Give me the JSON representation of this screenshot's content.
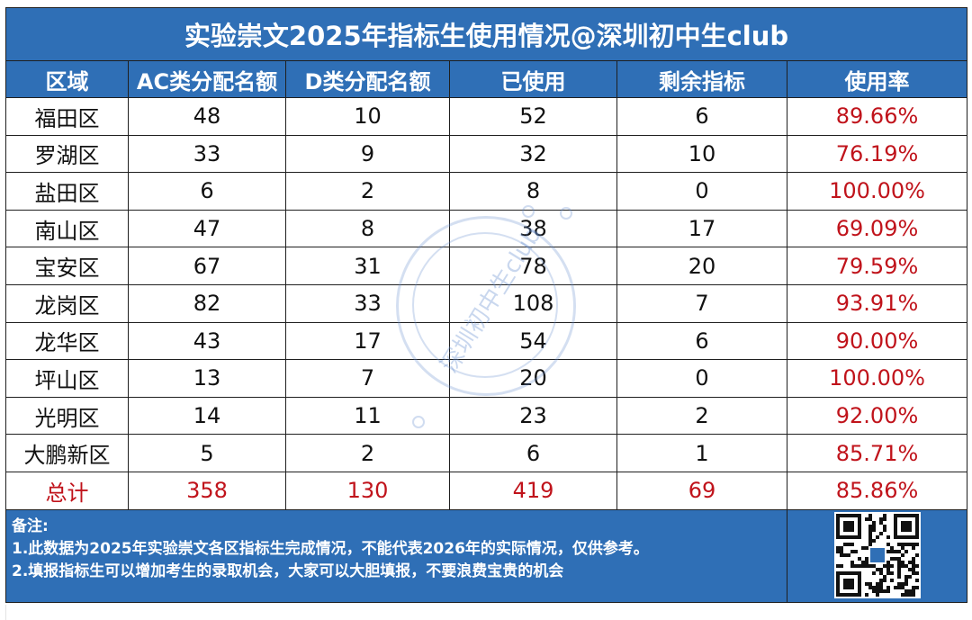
{
  "title": "实验崇文2025年指标生使用情况@深圳初中生club",
  "headers": [
    "区域",
    "AC类分配名额",
    "D类分配名额",
    "已使用",
    "剩余指标",
    "使用率"
  ],
  "rows": [
    [
      "福田区",
      "48",
      "10",
      "52",
      "6",
      "89.66%"
    ],
    [
      "罗湖区",
      "33",
      "9",
      "32",
      "10",
      "76.19%"
    ],
    [
      "盐田区",
      "6",
      "2",
      "8",
      "0",
      "100.00%"
    ],
    [
      "南山区",
      "47",
      "8",
      "38",
      "17",
      "69.09%"
    ],
    [
      "宝安区",
      "67",
      "31",
      "78",
      "20",
      "79.59%"
    ],
    [
      "龙岗区",
      "82",
      "33",
      "108",
      "7",
      "93.91%"
    ],
    [
      "龙华区",
      "43",
      "17",
      "54",
      "6",
      "90.00%"
    ],
    [
      "坪山区",
      "13",
      "7",
      "20",
      "0",
      "100.00%"
    ],
    [
      "光明区",
      "14",
      "11",
      "23",
      "2",
      "92.00%"
    ],
    [
      "大鹏新区",
      "5",
      "2",
      "6",
      "1",
      "85.71%"
    ]
  ],
  "total": [
    "总计",
    "358",
    "130",
    "419",
    "69",
    "85.86%"
  ],
  "notes": {
    "heading": "备注:",
    "line1": "1.此数据为2025年实验崇文各区指标生完成情况，不能代表2026年的实际情况，仅供参考。",
    "line2": "2.填报指标生可以增加考生的录取机会，大家可以大胆填报，不要浪费宝贵的机会"
  },
  "watermark": "深圳初中生club",
  "colors": {
    "header_bg": "#2f6fb6",
    "header_text": "#ffffff",
    "accent_red": "#c0131b"
  },
  "qr_icon": "qr-code-icon"
}
